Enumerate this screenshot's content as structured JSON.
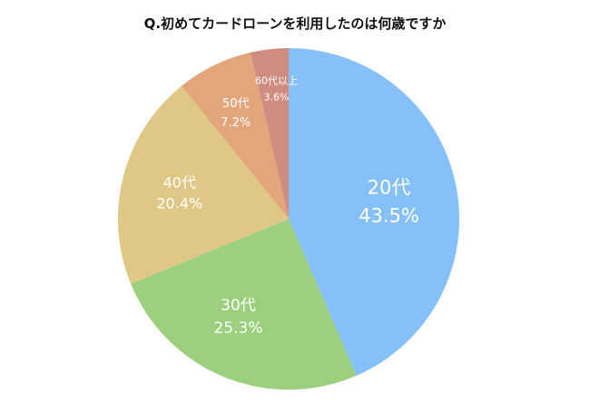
{
  "chart_data": {
    "type": "pie",
    "title": "Q.初めてカードローンを利用したのは何歳ですか",
    "categories": [
      "20代",
      "30代",
      "40代",
      "50代",
      "60代以上"
    ],
    "values": [
      43.5,
      25.3,
      20.4,
      7.2,
      3.6
    ],
    "value_labels": [
      "43.5%",
      "25.3%",
      "20.4%",
      "7.2%",
      "3.6%"
    ],
    "colors": [
      "#86c0f8",
      "#9dd07e",
      "#dfc786",
      "#e3a57c",
      "#d18c82"
    ],
    "start": "12 o'clock",
    "direction": "clockwise"
  }
}
